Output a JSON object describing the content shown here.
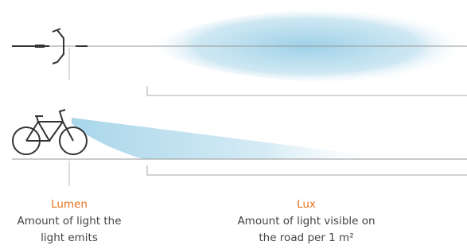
{
  "lumen": {
    "title": "Lumen",
    "lines": [
      "Amount of light the",
      "light emits"
    ]
  },
  "lux": {
    "title": "Lux",
    "lines": [
      "Amount of light visible on",
      "the road per 1 m²"
    ]
  }
}
